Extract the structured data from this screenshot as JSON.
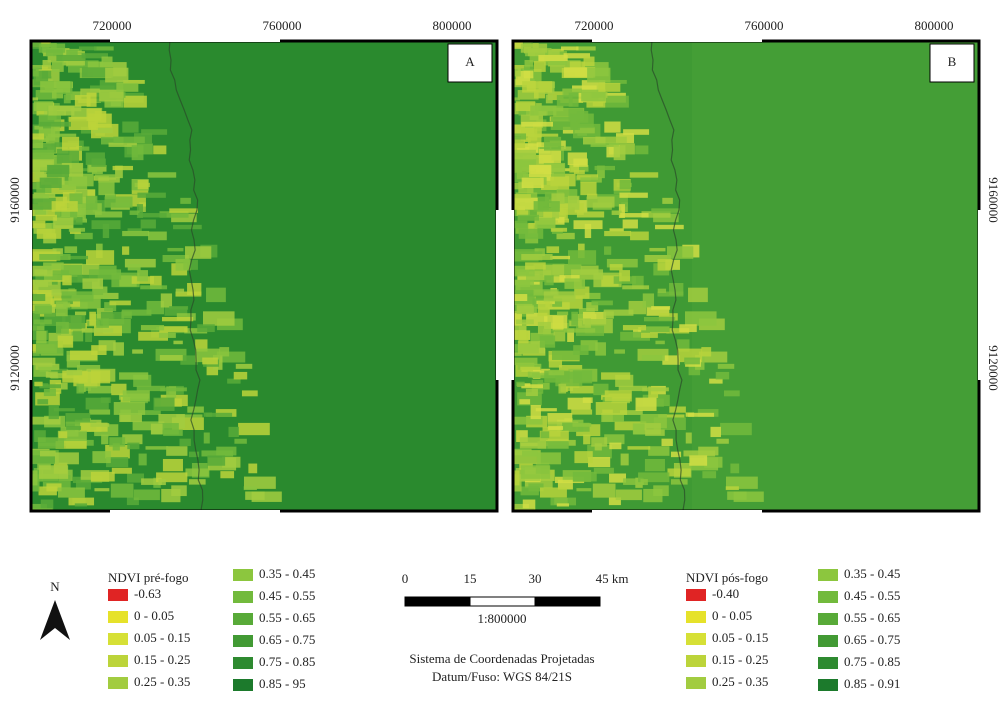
{
  "panels": [
    {
      "label": "A",
      "x_labels": [
        "720000",
        "760000",
        "800000"
      ],
      "y_labels": [
        "9160000",
        "9120000"
      ]
    },
    {
      "label": "B",
      "x_labels": [
        "720000",
        "760000",
        "800000"
      ],
      "y_labels": [
        "9160000",
        "9120000"
      ]
    }
  ],
  "north": "N",
  "legends": [
    {
      "title": "NDVI pré-fogo",
      "items": [
        {
          "label": "-0.63",
          "color": "#e02424"
        },
        {
          "label": "0 - 0.05",
          "color": "#e6e22a"
        },
        {
          "label": "0.05 - 0.15",
          "color": "#d6e036"
        },
        {
          "label": "0.15 - 0.25",
          "color": "#bcd43a"
        },
        {
          "label": "0.25 - 0.35",
          "color": "#a2cc40"
        },
        {
          "label": "0.35 - 0.45",
          "color": "#8cc63e"
        },
        {
          "label": "0.45 - 0.55",
          "color": "#72ba3c"
        },
        {
          "label": "0.55 - 0.65",
          "color": "#58aa38"
        },
        {
          "label": "0.65 - 0.75",
          "color": "#429a34"
        },
        {
          "label": "0.75 - 0.85",
          "color": "#2e8a30"
        },
        {
          "label": "0.85 - 95",
          "color": "#1c7a2c"
        }
      ]
    },
    {
      "title": "NDVI pós-fogo",
      "items": [
        {
          "label": "-0.40",
          "color": "#e02424"
        },
        {
          "label": "0 - 0.05",
          "color": "#e6e22a"
        },
        {
          "label": "0.05 - 0.15",
          "color": "#d6e036"
        },
        {
          "label": "0.15 - 0.25",
          "color": "#bcd43a"
        },
        {
          "label": "0.25 - 0.35",
          "color": "#a2cc40"
        },
        {
          "label": "0.35 - 0.45",
          "color": "#8cc63e"
        },
        {
          "label": "0.45 - 0.55",
          "color": "#72ba3c"
        },
        {
          "label": "0.55 - 0.65",
          "color": "#58aa38"
        },
        {
          "label": "0.65 - 0.75",
          "color": "#429a34"
        },
        {
          "label": "0.75 - 0.85",
          "color": "#2e8a30"
        },
        {
          "label": "0.85 - 0.91",
          "color": "#1c7a2c"
        }
      ]
    }
  ],
  "scale": {
    "ticks": [
      "0",
      "15",
      "30",
      "45 km"
    ],
    "ratio": "1:800000",
    "crs": "Sistema de Coordenadas Projetadas",
    "datum": "Datum/Fuso: WGS 84/21S"
  }
}
